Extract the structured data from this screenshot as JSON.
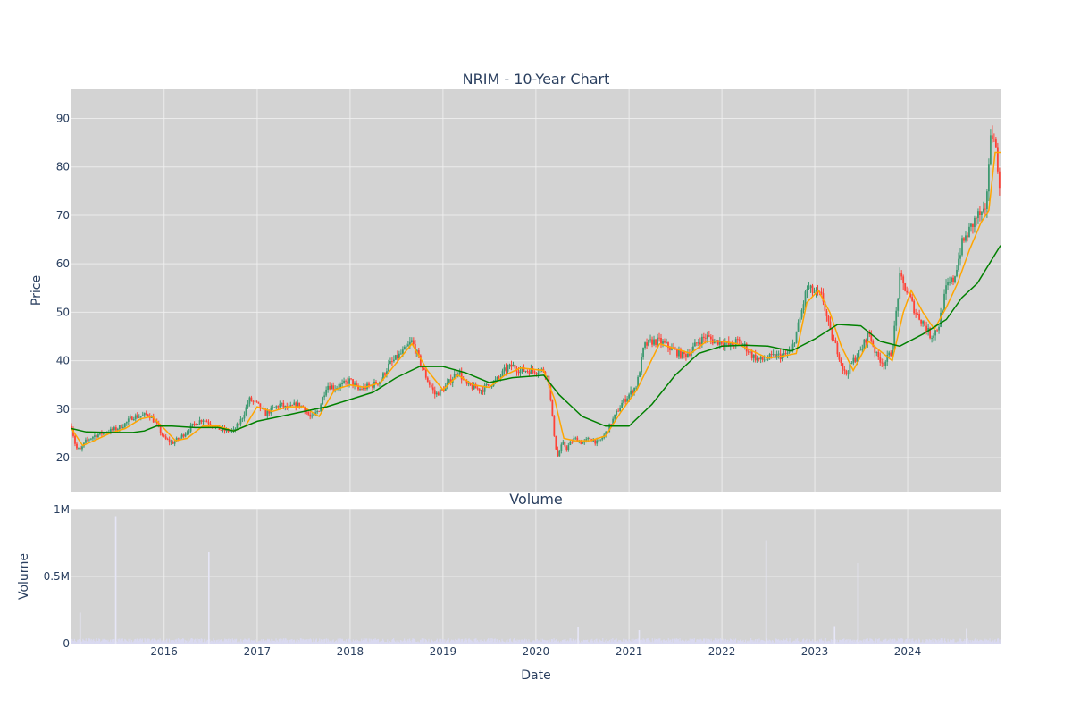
{
  "chart_data": [
    {
      "type": "candlestick",
      "title": "NRIM - 10-Year Chart",
      "ylabel": "Price",
      "ylim": [
        13,
        96
      ],
      "yticks": [
        20,
        30,
        40,
        50,
        60,
        70,
        80,
        90
      ],
      "xlim": [
        "2015-01-02",
        "2024-12-31"
      ],
      "grid": true,
      "colors": {
        "plot_bg": "#d3d3d3",
        "grid": "#f0f0f0",
        "up": "#3d9970",
        "down": "#ff4136",
        "ma_short": "#ffa500",
        "ma_long": "#008000"
      },
      "price_path": [
        [
          "2015-01-02",
          26.5
        ],
        [
          "2015-01-20",
          22
        ],
        [
          "2015-02-05",
          21.5
        ],
        [
          "2015-03-01",
          23.5
        ],
        [
          "2015-04-01",
          24.5
        ],
        [
          "2015-05-01",
          25
        ],
        [
          "2015-06-01",
          25.5
        ],
        [
          "2015-07-01",
          26
        ],
        [
          "2015-08-01",
          27
        ],
        [
          "2015-09-01",
          28.5
        ],
        [
          "2015-10-01",
          28.5
        ],
        [
          "2015-11-01",
          29
        ],
        [
          "2015-12-01",
          27
        ],
        [
          "2016-01-01",
          24
        ],
        [
          "2016-02-01",
          23
        ],
        [
          "2016-03-01",
          24
        ],
        [
          "2016-04-01",
          25.5
        ],
        [
          "2016-05-01",
          27
        ],
        [
          "2016-06-01",
          28
        ],
        [
          "2016-07-01",
          27
        ],
        [
          "2016-08-01",
          26
        ],
        [
          "2016-09-01",
          25.5
        ],
        [
          "2016-10-01",
          25.5
        ],
        [
          "2016-11-01",
          28
        ],
        [
          "2016-12-01",
          32
        ],
        [
          "2017-01-01",
          31
        ],
        [
          "2017-02-01",
          29
        ],
        [
          "2017-03-01",
          30
        ],
        [
          "2017-04-01",
          31
        ],
        [
          "2017-05-01",
          30
        ],
        [
          "2017-06-01",
          31
        ],
        [
          "2017-07-01",
          30.5
        ],
        [
          "2017-08-01",
          28
        ],
        [
          "2017-09-01",
          30
        ],
        [
          "2017-10-01",
          35
        ],
        [
          "2017-11-01",
          34.5
        ],
        [
          "2017-12-01",
          35
        ],
        [
          "2018-01-01",
          36
        ],
        [
          "2018-02-01",
          34
        ],
        [
          "2018-03-01",
          34.5
        ],
        [
          "2018-04-01",
          35
        ],
        [
          "2018-05-01",
          36
        ],
        [
          "2018-06-01",
          39
        ],
        [
          "2018-07-01",
          40.5
        ],
        [
          "2018-08-01",
          42
        ],
        [
          "2018-09-01",
          44
        ],
        [
          "2018-10-01",
          40
        ],
        [
          "2018-11-01",
          36
        ],
        [
          "2018-12-01",
          33
        ],
        [
          "2019-01-01",
          34
        ],
        [
          "2019-02-01",
          36
        ],
        [
          "2019-03-01",
          38
        ],
        [
          "2019-04-01",
          35
        ],
        [
          "2019-05-01",
          34.5
        ],
        [
          "2019-06-01",
          34
        ],
        [
          "2019-07-01",
          35
        ],
        [
          "2019-08-01",
          36
        ],
        [
          "2019-09-01",
          38
        ],
        [
          "2019-10-01",
          39
        ],
        [
          "2019-11-01",
          38
        ],
        [
          "2019-12-01",
          38
        ],
        [
          "2020-01-01",
          38
        ],
        [
          "2020-02-01",
          38
        ],
        [
          "2020-02-20",
          36
        ],
        [
          "2020-03-10",
          26
        ],
        [
          "2020-03-25",
          20
        ],
        [
          "2020-04-15",
          23
        ],
        [
          "2020-05-01",
          22
        ],
        [
          "2020-06-01",
          24
        ],
        [
          "2020-07-01",
          23
        ],
        [
          "2020-08-01",
          24
        ],
        [
          "2020-09-01",
          23
        ],
        [
          "2020-10-01",
          25
        ],
        [
          "2020-11-01",
          28
        ],
        [
          "2020-12-01",
          31
        ],
        [
          "2021-01-01",
          33
        ],
        [
          "2021-02-01",
          35
        ],
        [
          "2021-03-01",
          43
        ],
        [
          "2021-04-01",
          44
        ],
        [
          "2021-05-01",
          44
        ],
        [
          "2021-06-01",
          43
        ],
        [
          "2021-07-01",
          42
        ],
        [
          "2021-08-01",
          41
        ],
        [
          "2021-09-01",
          42
        ],
        [
          "2021-10-01",
          44
        ],
        [
          "2021-11-01",
          45
        ],
        [
          "2021-12-01",
          44
        ],
        [
          "2022-01-01",
          44
        ],
        [
          "2022-02-01",
          43
        ],
        [
          "2022-03-01",
          44
        ],
        [
          "2022-04-01",
          43
        ],
        [
          "2022-05-01",
          41
        ],
        [
          "2022-06-01",
          40
        ],
        [
          "2022-07-01",
          40.5
        ],
        [
          "2022-08-01",
          41
        ],
        [
          "2022-09-01",
          41
        ],
        [
          "2022-10-01",
          42
        ],
        [
          "2022-11-01",
          48
        ],
        [
          "2022-12-01",
          55
        ],
        [
          "2023-01-01",
          54
        ],
        [
          "2023-02-01",
          53
        ],
        [
          "2023-03-01",
          46
        ],
        [
          "2023-04-01",
          42
        ],
        [
          "2023-05-01",
          37
        ],
        [
          "2023-06-01",
          40
        ],
        [
          "2023-07-01",
          42
        ],
        [
          "2023-08-01",
          46
        ],
        [
          "2023-09-01",
          41
        ],
        [
          "2023-10-01",
          39.5
        ],
        [
          "2023-11-01",
          42
        ],
        [
          "2023-12-01",
          57
        ],
        [
          "2024-01-01",
          54
        ],
        [
          "2024-02-01",
          50
        ],
        [
          "2024-03-01",
          48
        ],
        [
          "2024-04-01",
          45
        ],
        [
          "2024-05-01",
          47
        ],
        [
          "2024-06-01",
          55
        ],
        [
          "2024-07-01",
          57
        ],
        [
          "2024-08-01",
          64
        ],
        [
          "2024-09-01",
          67
        ],
        [
          "2024-10-01",
          70
        ],
        [
          "2024-11-01",
          70
        ],
        [
          "2024-11-20",
          85
        ],
        [
          "2024-12-05",
          88
        ],
        [
          "2024-12-20",
          79
        ],
        [
          "2024-12-31",
          76
        ]
      ],
      "ma_short_path": [
        [
          "2015-01-02",
          26
        ],
        [
          "2015-02-15",
          22.5
        ],
        [
          "2015-04-01",
          23.5
        ],
        [
          "2015-06-01",
          25
        ],
        [
          "2015-08-01",
          26
        ],
        [
          "2015-10-01",
          28
        ],
        [
          "2015-11-15",
          28.5
        ],
        [
          "2016-01-01",
          26
        ],
        [
          "2016-02-15",
          23.5
        ],
        [
          "2016-04-01",
          24
        ],
        [
          "2016-06-01",
          26.5
        ],
        [
          "2016-08-01",
          26.5
        ],
        [
          "2016-10-01",
          25.5
        ],
        [
          "2016-11-15",
          26.5
        ],
        [
          "2017-01-01",
          30.5
        ],
        [
          "2017-03-01",
          29.5
        ],
        [
          "2017-05-01",
          30.5
        ],
        [
          "2017-07-01",
          30.5
        ],
        [
          "2017-09-01",
          28.5
        ],
        [
          "2017-11-01",
          34
        ],
        [
          "2018-01-01",
          35
        ],
        [
          "2018-03-01",
          34.5
        ],
        [
          "2018-05-01",
          35.5
        ],
        [
          "2018-07-01",
          39.5
        ],
        [
          "2018-09-01",
          43.5
        ],
        [
          "2018-11-01",
          38
        ],
        [
          "2019-01-01",
          34
        ],
        [
          "2019-03-01",
          37
        ],
        [
          "2019-05-01",
          35
        ],
        [
          "2019-07-01",
          34.5
        ],
        [
          "2019-09-01",
          37
        ],
        [
          "2019-11-01",
          38.5
        ],
        [
          "2020-02-01",
          38
        ],
        [
          "2020-03-15",
          32
        ],
        [
          "2020-04-20",
          24
        ],
        [
          "2020-06-01",
          23.5
        ],
        [
          "2020-08-01",
          23.5
        ],
        [
          "2020-10-01",
          24.5
        ],
        [
          "2020-12-01",
          29.5
        ],
        [
          "2021-02-01",
          34
        ],
        [
          "2021-03-20",
          39
        ],
        [
          "2021-05-01",
          43.5
        ],
        [
          "2021-07-01",
          42.5
        ],
        [
          "2021-09-01",
          41.5
        ],
        [
          "2021-11-01",
          44
        ],
        [
          "2022-01-01",
          44
        ],
        [
          "2022-03-01",
          43.5
        ],
        [
          "2022-05-01",
          42
        ],
        [
          "2022-07-01",
          40.5
        ],
        [
          "2022-09-01",
          41
        ],
        [
          "2022-10-20",
          41.5
        ],
        [
          "2022-12-01",
          52
        ],
        [
          "2023-01-15",
          54.5
        ],
        [
          "2023-03-01",
          50
        ],
        [
          "2023-04-15",
          43
        ],
        [
          "2023-06-01",
          38
        ],
        [
          "2023-08-01",
          44
        ],
        [
          "2023-09-15",
          42
        ],
        [
          "2023-11-01",
          40
        ],
        [
          "2023-12-15",
          50
        ],
        [
          "2024-01-15",
          54.5
        ],
        [
          "2024-03-01",
          50
        ],
        [
          "2024-04-15",
          46.5
        ],
        [
          "2024-06-01",
          51
        ],
        [
          "2024-07-15",
          56
        ],
        [
          "2024-09-01",
          63
        ],
        [
          "2024-10-15",
          68.5
        ],
        [
          "2024-11-15",
          71
        ],
        [
          "2024-12-10",
          83
        ],
        [
          "2024-12-31",
          83
        ]
      ],
      "ma_long_path": [
        [
          "2015-01-02",
          26
        ],
        [
          "2015-03-01",
          25.3
        ],
        [
          "2015-06-01",
          25.2
        ],
        [
          "2015-09-01",
          25.2
        ],
        [
          "2015-10-15",
          25.5
        ],
        [
          "2015-12-01",
          26.5
        ],
        [
          "2016-02-01",
          26.5
        ],
        [
          "2016-05-01",
          26.2
        ],
        [
          "2016-08-01",
          26.2
        ],
        [
          "2016-10-01",
          25.5
        ],
        [
          "2017-01-01",
          27.5
        ],
        [
          "2017-04-01",
          28.5
        ],
        [
          "2017-07-01",
          29.5
        ],
        [
          "2017-10-01",
          30.5
        ],
        [
          "2018-01-01",
          32
        ],
        [
          "2018-04-01",
          33.5
        ],
        [
          "2018-07-01",
          36.5
        ],
        [
          "2018-10-01",
          38.8
        ],
        [
          "2019-01-01",
          38.8
        ],
        [
          "2019-04-01",
          37.5
        ],
        [
          "2019-07-01",
          35.5
        ],
        [
          "2019-10-01",
          36.5
        ],
        [
          "2020-02-01",
          37
        ],
        [
          "2020-04-01",
          33
        ],
        [
          "2020-07-01",
          28.5
        ],
        [
          "2020-10-01",
          26.5
        ],
        [
          "2021-01-01",
          26.5
        ],
        [
          "2021-04-01",
          31
        ],
        [
          "2021-07-01",
          37
        ],
        [
          "2021-10-01",
          41.5
        ],
        [
          "2022-01-01",
          43
        ],
        [
          "2022-04-01",
          43.2
        ],
        [
          "2022-07-01",
          43
        ],
        [
          "2022-10-01",
          42
        ],
        [
          "2023-01-01",
          44.5
        ],
        [
          "2023-04-01",
          47.5
        ],
        [
          "2023-07-01",
          47.2
        ],
        [
          "2023-09-15",
          44
        ],
        [
          "2023-12-01",
          43
        ],
        [
          "2024-03-01",
          45.5
        ],
        [
          "2024-06-01",
          48.5
        ],
        [
          "2024-08-01",
          53
        ],
        [
          "2024-10-01",
          56
        ],
        [
          "2024-12-31",
          63.8
        ]
      ]
    },
    {
      "type": "bar",
      "title": "Volume",
      "xlabel": "Date",
      "ylabel": "Volume",
      "ylim": [
        0,
        1000000
      ],
      "yticks": [
        0,
        500000,
        1000000
      ],
      "ytick_labels": [
        "0",
        "0.5M",
        "1M"
      ],
      "xticks": [
        "2016-01-01",
        "2017-01-01",
        "2018-01-01",
        "2019-01-01",
        "2020-01-01",
        "2021-01-01",
        "2022-01-01",
        "2023-01-01",
        "2024-01-01"
      ],
      "xtick_labels": [
        "2016",
        "2017",
        "2018",
        "2019",
        "2020",
        "2021",
        "2022",
        "2023",
        "2024"
      ],
      "color": "#d9d9f0",
      "spikes": [
        [
          "2015-02-05",
          230000
        ],
        [
          "2015-06-25",
          950000
        ],
        [
          "2016-06-25",
          680000
        ],
        [
          "2022-06-24",
          770000
        ],
        [
          "2023-03-20",
          130000
        ],
        [
          "2023-06-20",
          600000
        ],
        [
          "2020-06-15",
          120000
        ],
        [
          "2021-02-10",
          100000
        ],
        [
          "2024-08-20",
          110000
        ]
      ]
    }
  ]
}
